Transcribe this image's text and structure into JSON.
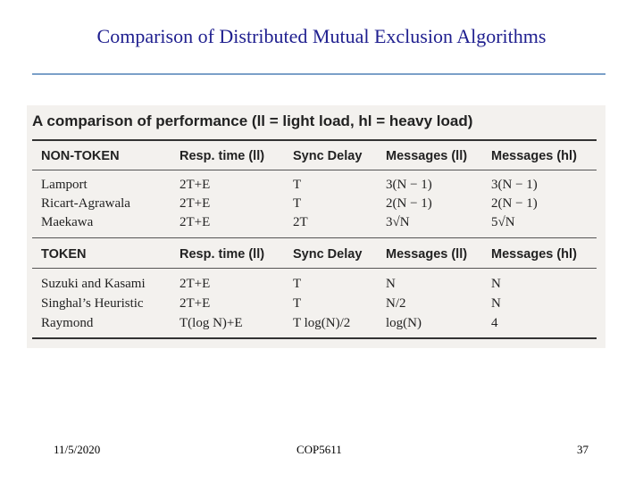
{
  "slide": {
    "title": "Comparison of Distributed Mutual Exclusion Algorithms"
  },
  "table": {
    "caption": "A comparison of performance (ll = light load, hl = heavy load)",
    "non_token_header": [
      "NON-TOKEN",
      "Resp. time (ll)",
      "Sync Delay",
      "Messages (ll)",
      "Messages (hl)"
    ],
    "non_token_rows": [
      [
        "Lamport",
        "2T+E",
        "T",
        "3(N − 1)",
        "3(N − 1)"
      ],
      [
        "Ricart-Agrawala",
        "2T+E",
        "T",
        "2(N − 1)",
        "2(N − 1)"
      ],
      [
        "Maekawa",
        "2T+E",
        "2T",
        "3√N",
        "5√N"
      ]
    ],
    "token_header": [
      "TOKEN",
      "Resp. time (ll)",
      "Sync Delay",
      "Messages (ll)",
      "Messages (hl)"
    ],
    "token_rows": [
      [
        "Suzuki and Kasami",
        "2T+E",
        "T",
        "N",
        "N"
      ],
      [
        "Singhal’s Heuristic",
        "2T+E",
        "T",
        "N/2",
        "N"
      ],
      [
        "Raymond",
        "T(log N)+E",
        "T log(N)/2",
        "log(N)",
        "4"
      ]
    ]
  },
  "footer": {
    "date": "11/5/2020",
    "course": "COP5611",
    "page": "37"
  }
}
